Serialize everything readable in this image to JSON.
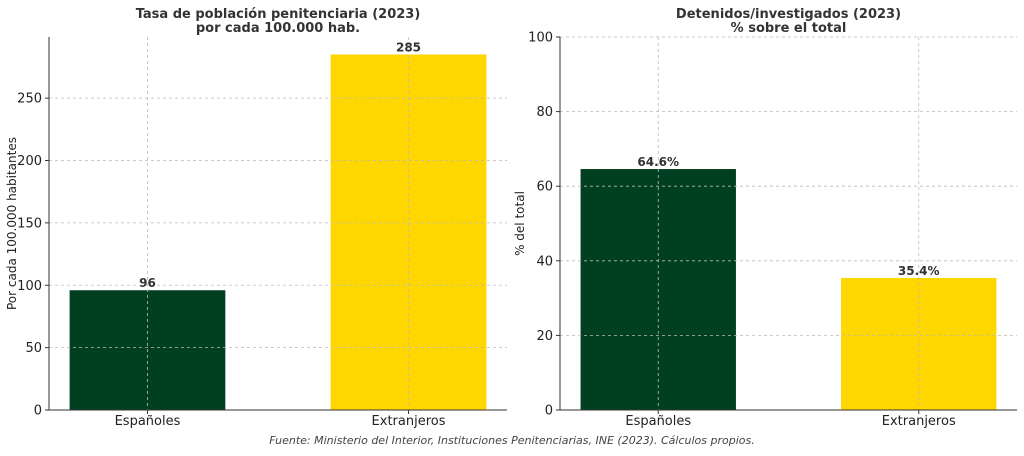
{
  "chart_data": [
    {
      "type": "bar",
      "title_lines": [
        "Tasa de población penitenciaria (2023)",
        "por cada 100.000 hab."
      ],
      "categories": [
        "Españoles",
        "Extranjeros"
      ],
      "values": [
        96,
        285
      ],
      "value_labels": [
        "96",
        "285"
      ],
      "colors": [
        "#004020",
        "#FFD700"
      ],
      "xlabel": "",
      "ylabel": "Por cada 100.000 habitantes",
      "ylim": [
        0,
        299
      ],
      "yticks": [
        0,
        50,
        100,
        150,
        200,
        250
      ],
      "grid": true
    },
    {
      "type": "bar",
      "title_lines": [
        "Detenidos/investigados (2023)",
        "% sobre el total"
      ],
      "categories": [
        "Españoles",
        "Extranjeros"
      ],
      "values": [
        64.6,
        35.4
      ],
      "value_labels": [
        "64.6%",
        "35.4%"
      ],
      "colors": [
        "#004020",
        "#FFD700"
      ],
      "xlabel": "",
      "ylabel": "% del total",
      "ylim": [
        0,
        100
      ],
      "yticks": [
        0,
        20,
        40,
        60,
        80,
        100
      ],
      "grid": true
    }
  ],
  "source_note": "Fuente: Ministerio del Interior, Instituciones Penitenciarias, INE (2023). Cálculos propios."
}
